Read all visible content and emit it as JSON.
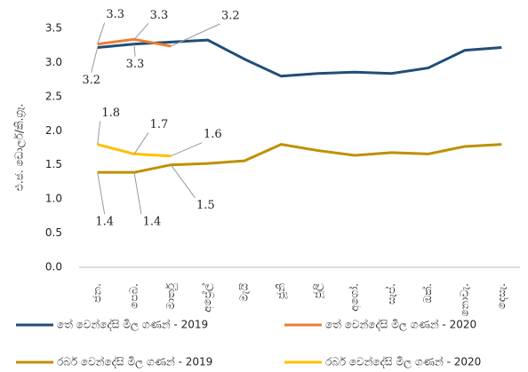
{
  "chart_data": {
    "type": "line",
    "y_label": "එ.ජ. ඩොලර්/කි.ග්‍රෑ.",
    "categories": [
      "ජන.",
      "පෙබ.",
      "මාර්තු",
      "අප්‍රේල්",
      "මැයි",
      "ජූනි",
      "ජූලි",
      "අගෝ.",
      "සැප්.",
      "ඔක්.",
      "නොවැ.",
      "දෙසැ."
    ],
    "ylim": [
      0,
      3.5
    ],
    "yticks": [
      {
        "value": 0,
        "label": "0.0"
      },
      0.5,
      {
        "value": 1,
        "label": "1.0"
      },
      1.5,
      {
        "value": 2,
        "label": "2.0"
      },
      2.5,
      {
        "value": 3,
        "label": "3.0"
      },
      3.5
    ],
    "grid": false,
    "legend": "bottom",
    "series": [
      {
        "name": "තේ වෙන්දේසි මිල ගණන් - 2019",
        "color": "#1f4e79",
        "values": [
          3.22,
          3.27,
          3.3,
          3.33,
          3.05,
          2.8,
          2.84,
          2.86,
          2.84,
          2.92,
          3.18,
          3.22
        ],
        "value_labels": [
          "3.2",
          "3.3",
          null,
          null,
          null,
          null,
          null,
          null,
          null,
          null,
          null,
          null
        ]
      },
      {
        "name": "තේ වෙන්දේසි මිල ගණන් - 2020",
        "color": "#ed7d31",
        "values": [
          3.27,
          3.34,
          3.24,
          null,
          null,
          null,
          null,
          null,
          null,
          null,
          null,
          null
        ],
        "value_labels": [
          "3.3",
          "3.3",
          "3.2",
          null,
          null,
          null,
          null,
          null,
          null,
          null,
          null,
          null
        ]
      },
      {
        "name": "රබර් වෙන්දේසි මිල ගණන් - 2019",
        "color": "#bf9000",
        "values": [
          1.39,
          1.39,
          1.5,
          1.52,
          1.56,
          1.8,
          1.71,
          1.64,
          1.68,
          1.66,
          1.77,
          1.8
        ],
        "value_labels": [
          "1.4",
          "1.4",
          "1.5",
          null,
          null,
          null,
          null,
          null,
          null,
          null,
          null,
          null
        ]
      },
      {
        "name": "රබර් වෙන්දේසි මිල ගණන් - 2020",
        "color": "#ffc000",
        "values": [
          1.8,
          1.66,
          1.63,
          null,
          null,
          null,
          null,
          null,
          null,
          null,
          null,
          null
        ],
        "value_labels": [
          "1.8",
          "1.7",
          "1.6",
          null,
          null,
          null,
          null,
          null,
          null,
          null,
          null,
          null
        ]
      }
    ]
  }
}
